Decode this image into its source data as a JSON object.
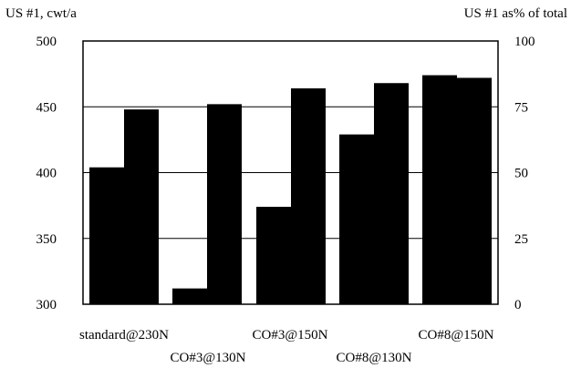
{
  "chart_data": {
    "type": "bar",
    "title": "",
    "left_axis_title": "US #1, cwt/a",
    "right_axis_title": "US #1 as% of total",
    "categories": [
      "standard@230N",
      "CO#3@130N",
      "CO#3@150N",
      "CO#8@130N",
      "CO#8@150N"
    ],
    "series": [
      {
        "axis": "left",
        "values": [
          404,
          312,
          374,
          429,
          474
        ]
      },
      {
        "axis": "right",
        "values": [
          74,
          76,
          82,
          84,
          86
        ]
      }
    ],
    "ylim_left": [
      300,
      500
    ],
    "yticks_left": [
      "300",
      "350",
      "400",
      "450",
      "500"
    ],
    "ylim_right": [
      0,
      100
    ],
    "yticks_right": [
      "0",
      "25",
      "50",
      "75",
      "100"
    ],
    "grid": true,
    "legend": "none",
    "bar_color": "#000000",
    "gridline_color": "#000000"
  }
}
